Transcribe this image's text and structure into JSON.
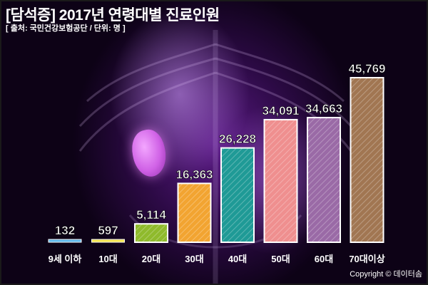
{
  "header": {
    "title": "[담석증] 2017년 연령대별 진료인원",
    "source": "[ 출처: 국민건강보험공단 / 단위: 명 ]"
  },
  "footer": {
    "copyright": "Copyright © 데이터솜"
  },
  "chart_data": {
    "type": "bar",
    "categories": [
      "9세 이하",
      "10대",
      "20대",
      "30대",
      "40대",
      "50대",
      "60대",
      "70대이상"
    ],
    "series": [
      {
        "values": [
          132,
          597,
          5114,
          16363,
          26228,
          34091,
          34663,
          45769
        ],
        "value_labels": [
          "132",
          "597",
          "5,114",
          "16,363",
          "26,228",
          "34,091",
          "34,663",
          "45,769"
        ]
      }
    ],
    "ylim": [
      0,
      45769
    ],
    "grid": false,
    "legend": "none",
    "colors": [
      "#5ab4e8",
      "#f2e34a",
      "#8fba2c",
      "#f2a431",
      "#1f9a96",
      "#ef8f8f",
      "#9a6aa6",
      "#a17652"
    ]
  }
}
